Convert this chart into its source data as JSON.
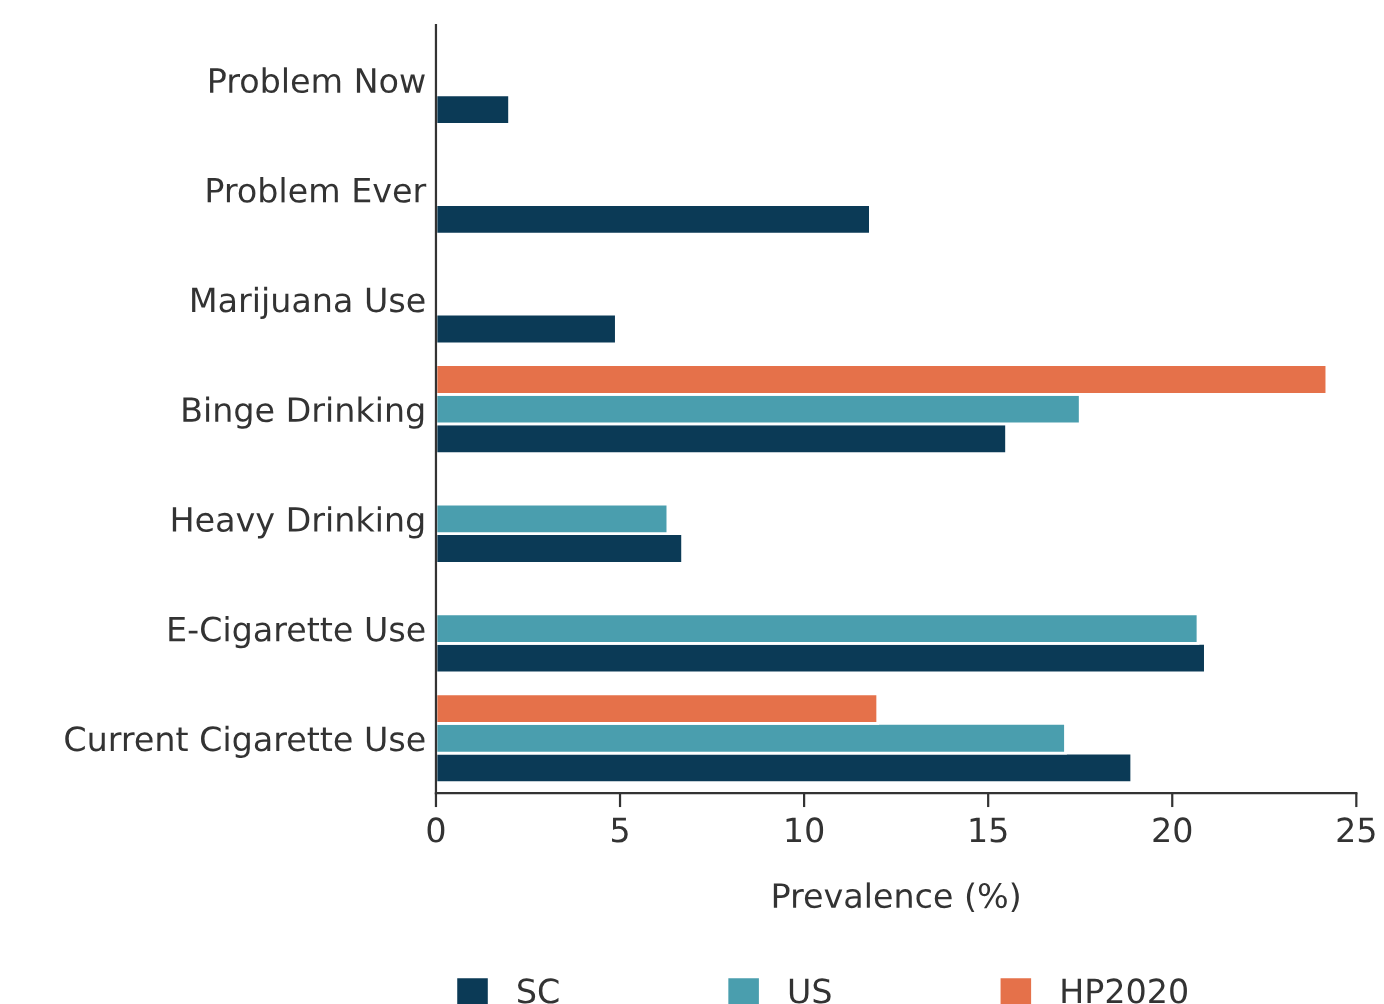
{
  "chart_data": {
    "type": "bar",
    "orientation": "horizontal",
    "xlabel": "Prevalence (%)",
    "categories": [
      "Problem Now",
      "Problem Ever",
      "Marijuana Use",
      "Binge Drinking",
      "Heavy Drinking",
      "E-Cigarette Use",
      "Current Cigarette Use"
    ],
    "series": [
      {
        "name": "SC",
        "color": "#0b3a56",
        "values": [
          2.0,
          11.8,
          4.9,
          15.5,
          6.7,
          20.9,
          18.9
        ]
      },
      {
        "name": "US",
        "color": "#4a9eae",
        "values": [
          null,
          null,
          null,
          17.5,
          6.3,
          20.7,
          17.1
        ]
      },
      {
        "name": "HP2020",
        "color": "#e5714a",
        "values": [
          null,
          null,
          null,
          24.2,
          null,
          null,
          12.0
        ]
      }
    ],
    "xlim": [
      0,
      25
    ],
    "xticks": [
      0,
      5,
      10,
      15,
      20,
      25
    ],
    "grid": false,
    "legend": "bottom"
  }
}
